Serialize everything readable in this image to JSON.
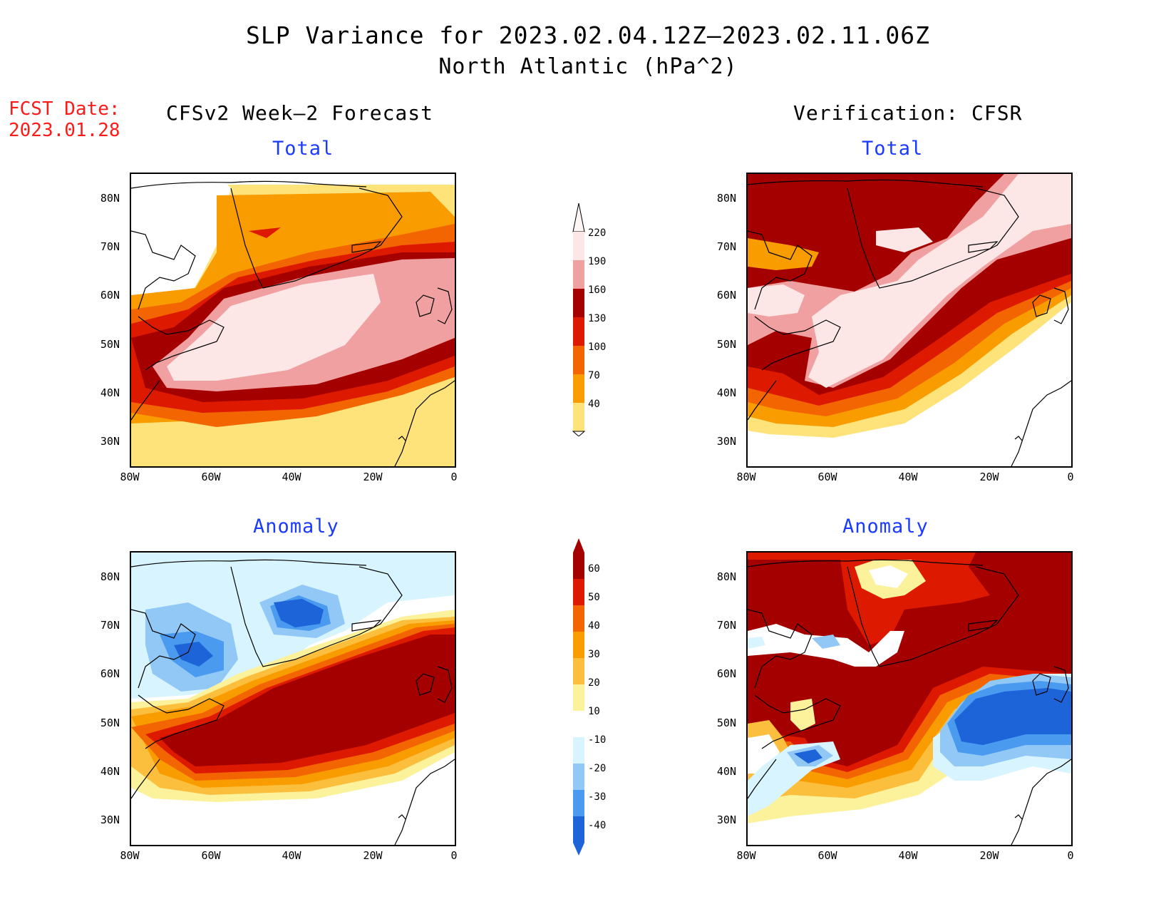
{
  "title": "SLP Variance for 2023.02.04.12Z—2023.02.11.06Z",
  "subtitle": "North Atlantic (hPa^2)",
  "forecast_date": {
    "label": "FCST Date:",
    "value": "2023.01.28"
  },
  "columns": {
    "left": "CFSv2 Week—2 Forecast",
    "right": "Verification: CFSR"
  },
  "panels": [
    {
      "id": "fcst-total",
      "subtitle": "Total"
    },
    {
      "id": "verif-total",
      "subtitle": "Total"
    },
    {
      "id": "fcst-anomaly",
      "subtitle": "Anomaly"
    },
    {
      "id": "verif-anomaly",
      "subtitle": "Anomaly"
    }
  ],
  "lat_ticks": [
    "80N",
    "70N",
    "60N",
    "50N",
    "40N",
    "30N"
  ],
  "lon_ticks": [
    "80W",
    "60W",
    "40W",
    "20W",
    "0"
  ],
  "total_colorbar": {
    "labels": [
      "220",
      "190",
      "160",
      "130",
      "100",
      "70",
      "40"
    ],
    "colors": [
      "#fde6e6",
      "#f0a0a0",
      "#a50000",
      "#dd1a00",
      "#f26500",
      "#f99c00",
      "#fde37a"
    ]
  },
  "anomaly_colorbar": {
    "labels": [
      "60",
      "50",
      "40",
      "30",
      "20",
      "10",
      "-10",
      "-20",
      "-30",
      "-40"
    ],
    "colors": [
      "#a50000",
      "#dd1a00",
      "#f26500",
      "#f99c00",
      "#fbbf3d",
      "#fdf29c",
      "#ffffff",
      "#d8f4ff",
      "#92c8f6",
      "#4a9af0",
      "#1c64d8"
    ]
  }
}
